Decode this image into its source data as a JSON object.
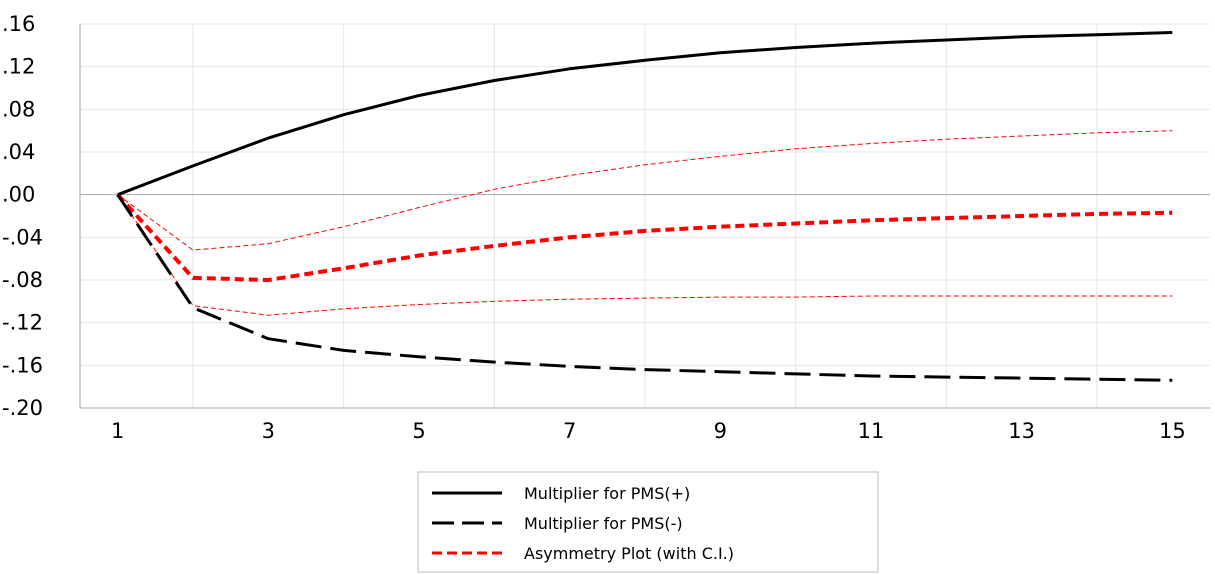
{
  "chart_data": {
    "type": "line",
    "title": "",
    "xlabel": "",
    "ylabel": "",
    "x": [
      1,
      2,
      3,
      4,
      5,
      6,
      7,
      8,
      9,
      10,
      11,
      12,
      13,
      14,
      15
    ],
    "xticks": [
      "1",
      "3",
      "5",
      "7",
      "9",
      "11",
      "13",
      "15"
    ],
    "xtick_values": [
      1,
      3,
      5,
      7,
      9,
      11,
      13,
      15
    ],
    "yticks": [
      ".16",
      ".12",
      ".08",
      ".04",
      ".00",
      "-.04",
      "-.08",
      "-.12",
      "-.16",
      "-.20"
    ],
    "ytick_values": [
      0.16,
      0.12,
      0.08,
      0.04,
      0.0,
      -0.04,
      -0.08,
      -0.12,
      -0.16,
      -0.2
    ],
    "xlim": [
      0.5,
      15.5
    ],
    "ylim": [
      -0.2,
      0.16
    ],
    "grid": true,
    "legend_position": "bottom-center",
    "series": [
      {
        "name": "Multiplier for PMS(+)",
        "style": "solid",
        "color": "#000000",
        "values": [
          0.0,
          0.027,
          0.053,
          0.075,
          0.093,
          0.107,
          0.118,
          0.126,
          0.133,
          0.138,
          0.142,
          0.145,
          0.148,
          0.15,
          0.152
        ]
      },
      {
        "name": "Multiplier for PMS(-)",
        "style": "long-dash",
        "color": "#000000",
        "values": [
          0.0,
          -0.106,
          -0.135,
          -0.146,
          -0.152,
          -0.157,
          -0.161,
          -0.164,
          -0.166,
          -0.168,
          -0.17,
          -0.171,
          -0.172,
          -0.173,
          -0.174
        ]
      },
      {
        "name": "Asymmetry Plot (with C.I.)",
        "style": "dash",
        "color": "#ff0000",
        "values": [
          0.0,
          -0.078,
          -0.08,
          -0.069,
          -0.057,
          -0.048,
          -0.04,
          -0.034,
          -0.03,
          -0.027,
          -0.024,
          -0.022,
          -0.02,
          -0.018,
          -0.017
        ]
      },
      {
        "name": "",
        "style": "thin-dash",
        "color": "#ff0000",
        "values": [
          0.0,
          -0.052,
          -0.046,
          -0.03,
          -0.012,
          0.005,
          0.018,
          0.028,
          0.036,
          0.043,
          0.048,
          0.052,
          0.055,
          0.058,
          0.06
        ]
      },
      {
        "name": "",
        "style": "thin-dash",
        "color": "#ff0000",
        "values": [
          0.0,
          -0.104,
          -0.113,
          -0.107,
          -0.103,
          -0.1,
          -0.098,
          -0.097,
          -0.096,
          -0.096,
          -0.095,
          -0.095,
          -0.095,
          -0.095,
          -0.095
        ]
      }
    ]
  },
  "legend": {
    "items": [
      "Multiplier for PMS(+)",
      "Multiplier for PMS(-)",
      "Asymmetry Plot (with C.I.)"
    ]
  }
}
